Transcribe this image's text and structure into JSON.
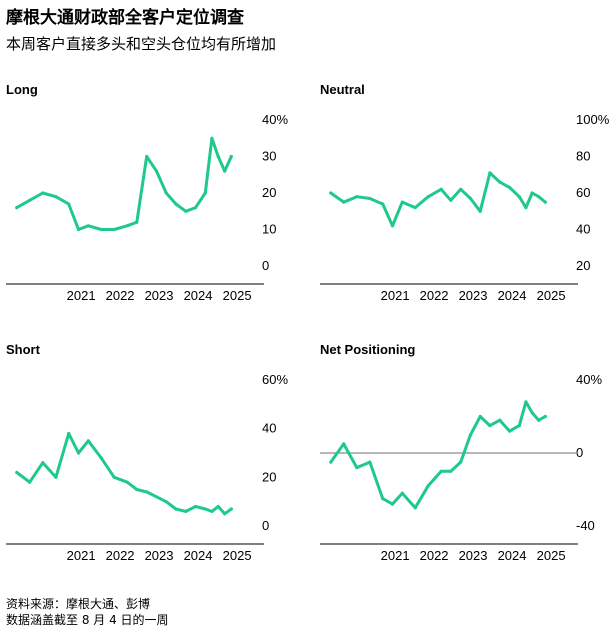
{
  "title": "摩根大通财政部全客户定位调查",
  "subtitle": "本周客户直接多头和空头仓位均有所增加",
  "source": "资料来源：摩根大通、彭博",
  "note": "数据涵盖截至 8 月 4 日的一周",
  "colors": {
    "line": "#1ec98a",
    "axis": "#000000",
    "zero_line": "#8c8c8c"
  },
  "chart_data": [
    {
      "type": "line",
      "title": "Long",
      "unit": "%",
      "ylim": [
        0,
        40
      ],
      "yticks": [
        "40%",
        "30",
        "20",
        "10",
        "0"
      ],
      "xticks": [
        "2021",
        "2022",
        "2023",
        "2024",
        "2025"
      ],
      "x": [
        "2020-02",
        "2020-06",
        "2020-10",
        "2021-02",
        "2021-06",
        "2021-09",
        "2021-12",
        "2022-04",
        "2022-08",
        "2022-12",
        "2023-03",
        "2023-06",
        "2023-09",
        "2023-12",
        "2024-03",
        "2024-06",
        "2024-09",
        "2024-12",
        "2025-02",
        "2025-04",
        "2025-06",
        "2025-08"
      ],
      "series": [
        {
          "values": [
            16,
            18,
            20,
            19,
            17,
            10,
            11,
            10,
            10,
            11,
            12,
            30,
            26,
            20,
            17,
            15,
            16,
            20,
            35,
            30,
            26,
            30
          ]
        }
      ]
    },
    {
      "type": "line",
      "title": "Neutral",
      "unit": "%",
      "ylim": [
        20,
        100
      ],
      "yticks": [
        "100%",
        "80",
        "60",
        "40",
        "20"
      ],
      "xticks": [
        "2021",
        "2022",
        "2023",
        "2024",
        "2025"
      ],
      "x": [
        "2020-02",
        "2020-06",
        "2020-10",
        "2021-02",
        "2021-06",
        "2021-09",
        "2021-12",
        "2022-04",
        "2022-08",
        "2022-12",
        "2023-03",
        "2023-06",
        "2023-09",
        "2023-12",
        "2024-03",
        "2024-06",
        "2024-09",
        "2024-12",
        "2025-02",
        "2025-04",
        "2025-06",
        "2025-08"
      ],
      "series": [
        {
          "values": [
            60,
            55,
            58,
            57,
            54,
            42,
            55,
            52,
            58,
            62,
            56,
            62,
            57,
            50,
            71,
            66,
            63,
            58,
            52,
            60,
            58,
            55
          ]
        }
      ]
    },
    {
      "type": "line",
      "title": "Short",
      "unit": "%",
      "ylim": [
        0,
        60
      ],
      "yticks": [
        "60%",
        "40",
        "20",
        "0"
      ],
      "xticks": [
        "2021",
        "2022",
        "2023",
        "2024",
        "2025"
      ],
      "x": [
        "2020-02",
        "2020-06",
        "2020-10",
        "2021-02",
        "2021-06",
        "2021-09",
        "2021-12",
        "2022-04",
        "2022-08",
        "2022-12",
        "2023-03",
        "2023-06",
        "2023-09",
        "2023-12",
        "2024-03",
        "2024-06",
        "2024-09",
        "2024-12",
        "2025-02",
        "2025-04",
        "2025-06",
        "2025-08"
      ],
      "series": [
        {
          "values": [
            22,
            18,
            26,
            20,
            38,
            30,
            35,
            28,
            20,
            18,
            15,
            14,
            12,
            10,
            7,
            6,
            8,
            7,
            6,
            8,
            5,
            7
          ]
        }
      ]
    },
    {
      "type": "line",
      "title": "Net Positioning",
      "unit": "%",
      "ylim": [
        -40,
        40
      ],
      "yticks": [
        "40%",
        "0",
        "-40"
      ],
      "xticks": [
        "2021",
        "2022",
        "2023",
        "2024",
        "2025"
      ],
      "x": [
        "2020-02",
        "2020-06",
        "2020-10",
        "2021-02",
        "2021-06",
        "2021-09",
        "2021-12",
        "2022-04",
        "2022-08",
        "2022-12",
        "2023-03",
        "2023-06",
        "2023-09",
        "2023-12",
        "2024-03",
        "2024-06",
        "2024-09",
        "2024-12",
        "2025-02",
        "2025-04",
        "2025-06",
        "2025-08"
      ],
      "series": [
        {
          "values": [
            -5,
            5,
            -8,
            -5,
            -25,
            -28,
            -22,
            -30,
            -18,
            -10,
            -10,
            -5,
            10,
            20,
            15,
            18,
            12,
            15,
            28,
            22,
            18,
            20
          ]
        }
      ]
    }
  ]
}
